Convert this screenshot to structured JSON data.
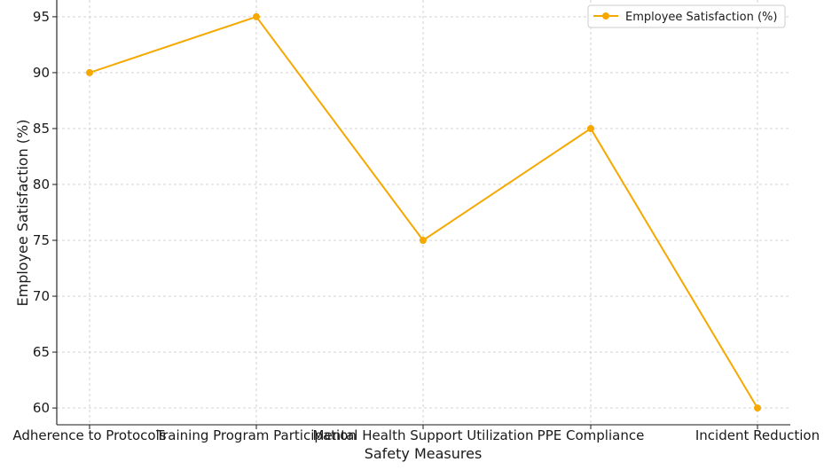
{
  "chart_data": {
    "type": "line",
    "title": "",
    "xlabel": "Safety Measures",
    "ylabel": "Employee Satisfaction (%)",
    "categories": [
      "Adherence to Protocols",
      "Training Program Participation",
      "Mental Health Support Utilization",
      "PPE Compliance",
      "Incident Reduction"
    ],
    "series": [
      {
        "name": "Employee Satisfaction (%)",
        "values": [
          90,
          95,
          75,
          85,
          60
        ],
        "color": "#f5a800"
      }
    ],
    "ylim": [
      58.5,
      96.5
    ],
    "yticks": [
      60,
      65,
      70,
      75,
      80,
      85,
      90,
      95
    ],
    "grid": true,
    "legend_position": "top-right"
  }
}
